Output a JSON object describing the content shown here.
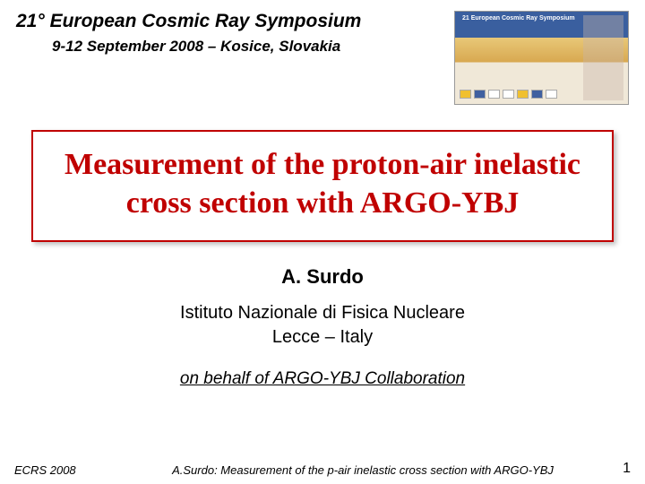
{
  "header": {
    "symposium_title": "21° European Cosmic Ray Symposium",
    "symposium_subtitle": "9-12 September 2008 – Kosice, Slovakia",
    "poster_header": "21 European Cosmic Ray Symposium"
  },
  "title": {
    "text": "Measurement of the proton-air inelastic cross section with ARGO-YBJ",
    "border_color": "#c00000",
    "text_color": "#c00000"
  },
  "author": {
    "name": "A. Surdo",
    "affiliation_line1": "Istituto Nazionale di Fisica Nucleare",
    "affiliation_line2": "Lecce – Italy",
    "on_behalf": "on behalf of ARGO-YBJ Collaboration"
  },
  "footer": {
    "left": "ECRS 2008",
    "center": "A.Surdo: Measurement of the p-air inelastic cross section with ARGO-YBJ",
    "page": "1"
  },
  "colors": {
    "background": "#ffffff",
    "text": "#000000",
    "accent": "#c00000"
  }
}
